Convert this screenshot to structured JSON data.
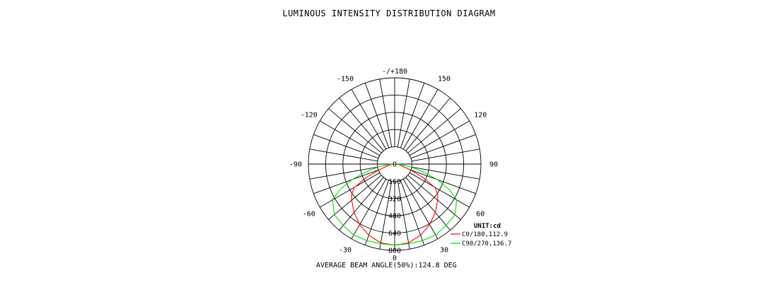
{
  "chart_data": {
    "type": "polar-line",
    "title": "LUMINOUS INTENSITY DISTRIBUTION DIAGRAM",
    "footer": "AVERAGE BEAM ANGLE(50%):124.8 DEG",
    "unit_label": "UNIT:cd",
    "radial_range": [
      0,
      800
    ],
    "radial_tick_labels": [
      "0",
      "160",
      "320",
      "480",
      "640",
      "800"
    ],
    "radial_tick_values": [
      0,
      160,
      320,
      480,
      640,
      800
    ],
    "angle_labels": [
      {
        "angle": 0,
        "text": "0"
      },
      {
        "angle": 30,
        "text": "30"
      },
      {
        "angle": 60,
        "text": "60"
      },
      {
        "angle": 90,
        "text": "90"
      },
      {
        "angle": 120,
        "text": "120"
      },
      {
        "angle": 150,
        "text": "150"
      },
      {
        "angle": 180,
        "text": "-/+180"
      },
      {
        "angle": -150,
        "text": "-150"
      },
      {
        "angle": -120,
        "text": "-120"
      },
      {
        "angle": -90,
        "text": "-90"
      },
      {
        "angle": -60,
        "text": "-60"
      },
      {
        "angle": -30,
        "text": "-30"
      }
    ],
    "series": [
      {
        "name": "C0/180,112.9",
        "color": "#ff0000",
        "angles": [
          0,
          10,
          20,
          30,
          40,
          50,
          55,
          60,
          65,
          70,
          80,
          90
        ],
        "values": [
          752,
          742,
          702,
          648,
          586,
          520,
          488,
          430,
          280,
          150,
          50,
          8
        ]
      },
      {
        "name": "C90/270,136.7",
        "color": "#00dd00",
        "angles": [
          0,
          10,
          20,
          30,
          40,
          50,
          60,
          65,
          70,
          75,
          80,
          85,
          90
        ],
        "values": [
          752,
          750,
          755,
          760,
          742,
          730,
          665,
          560,
          420,
          270,
          150,
          70,
          15
        ]
      }
    ],
    "grid": true,
    "legend_position": "bottom-right"
  }
}
